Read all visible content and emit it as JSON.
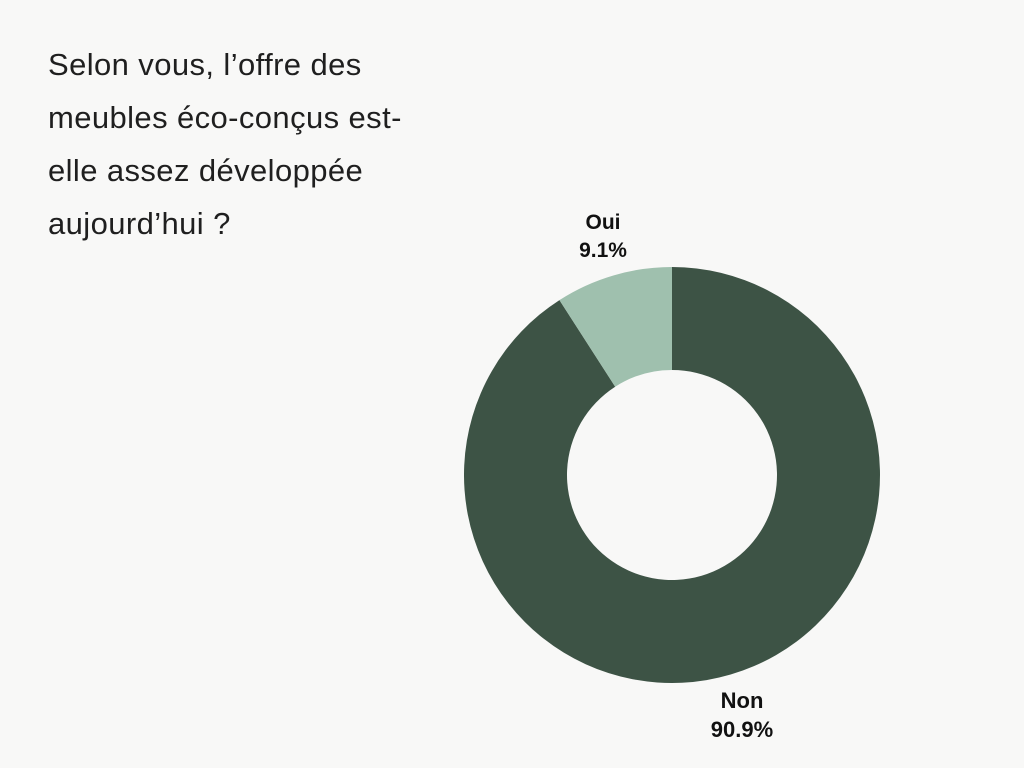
{
  "page": {
    "background_color": "#f8f8f7",
    "text_color": "#1f1f1f"
  },
  "question": {
    "lines": [
      "Selon vous, l’offre des",
      "meubles éco-conçus est-",
      "elle assez développée",
      "aujourd’hui ?"
    ]
  },
  "chart_data": {
    "type": "pie",
    "subtype": "donut",
    "title": "Selon vous, l’offre des meubles éco-conçus est-elle assez développée aujourd’hui ?",
    "categories": [
      "Non",
      "Oui"
    ],
    "values": [
      90.9,
      9.1
    ],
    "slices": [
      {
        "label": "Non",
        "value_pct": 90.9,
        "value_text": "90.9%",
        "color": "#3d5345"
      },
      {
        "label": "Oui",
        "value_pct": 9.1,
        "value_text": "9.1%",
        "color": "#9fc0ae"
      }
    ],
    "start_angle_deg": 0,
    "direction": "clockwise",
    "inner_radius_ratio": 0.505,
    "legend": "none",
    "label_color": "#111111"
  }
}
